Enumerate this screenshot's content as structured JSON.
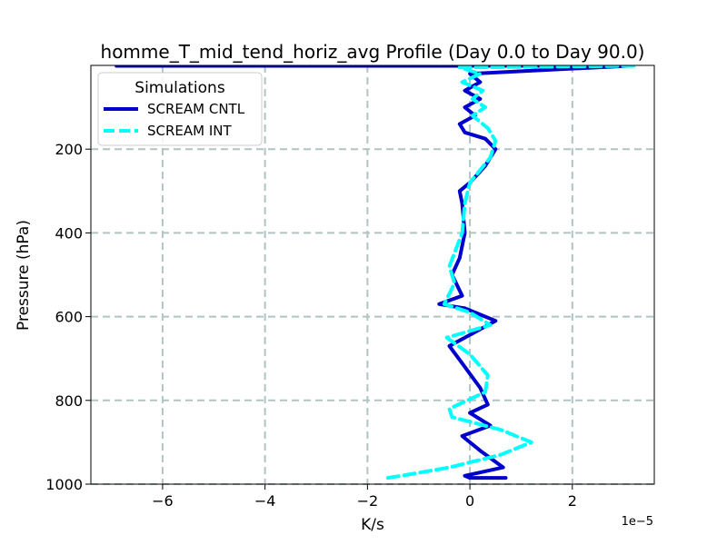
{
  "chart_data": {
    "type": "line",
    "title": "homme_T_mid_tend_horiz_avg Profile (Day 0.0 to Day 90.0)",
    "xlabel": "K/s",
    "ylabel": "Pressure (hPa)",
    "x_scale_label": "1e−5",
    "xlim": [
      -7.4,
      3.6
    ],
    "ylim": [
      1000,
      0
    ],
    "y_inverted": true,
    "grid": true,
    "x_ticks": [
      -6,
      -4,
      -2,
      0,
      2
    ],
    "x_tick_labels": [
      "−6",
      "−4",
      "−2",
      "0",
      "2"
    ],
    "y_ticks": [
      200,
      400,
      600,
      800,
      1000
    ],
    "y_tick_labels": [
      "200",
      "400",
      "600",
      "800",
      "1000"
    ],
    "legend": {
      "title": "Simulations",
      "placement": "top-left"
    },
    "series": [
      {
        "name": "SCREAM CNTL",
        "color": "#0000cd",
        "style": "solid",
        "x": [
          -6.9,
          3.1,
          0.0,
          0.2,
          -0.1,
          0.2,
          -0.1,
          0.1,
          -0.2,
          -0.1,
          0.3,
          0.5,
          0.3,
          0.0,
          -0.2,
          -0.15,
          -0.1,
          -0.2,
          -0.35,
          -0.15,
          -0.6,
          -0.1,
          0.5,
          -0.1,
          -0.4,
          -0.1,
          0.2,
          0.35,
          0.0,
          0.4,
          -0.15,
          0.2,
          0.65,
          -0.1,
          0.0,
          0.7
        ],
        "y": [
          1,
          1,
          20,
          40,
          60,
          80,
          100,
          120,
          140,
          160,
          175,
          200,
          240,
          280,
          300,
          330,
          400,
          460,
          500,
          550,
          570,
          580,
          610,
          650,
          670,
          720,
          770,
          810,
          830,
          860,
          885,
          920,
          960,
          980,
          985,
          985
        ]
      },
      {
        "name": "SCREAM INT",
        "color": "#00ffff",
        "style": "dashed",
        "x": [
          3.2,
          -0.2,
          0.2,
          -0.15,
          0.25,
          0.05,
          0.3,
          0.05,
          0.35,
          0.5,
          0.4,
          0.0,
          -0.1,
          -0.15,
          -0.4,
          -0.3,
          -0.5,
          0.0,
          0.4,
          -0.45,
          0.0,
          0.35,
          0.3,
          -0.4,
          -0.35,
          0.6,
          1.2,
          0.6,
          -0.4,
          -1.1,
          -1.6
        ],
        "y": [
          1,
          5,
          20,
          40,
          60,
          80,
          100,
          120,
          150,
          180,
          220,
          280,
          330,
          400,
          480,
          520,
          570,
          590,
          620,
          650,
          690,
          740,
          780,
          820,
          840,
          870,
          900,
          930,
          960,
          975,
          985
        ]
      }
    ]
  }
}
